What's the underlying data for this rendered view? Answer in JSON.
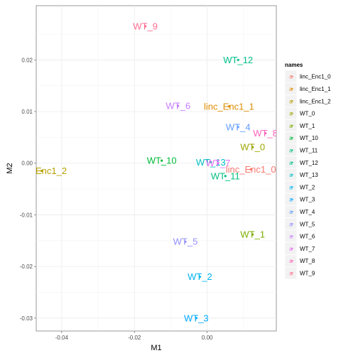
{
  "chart_data": {
    "type": "scatter",
    "xlabel": "M1",
    "ylabel": "M2",
    "xlim": [
      -0.047,
      0.019
    ],
    "ylim": [
      -0.0325,
      0.0305
    ],
    "x_ticks": [
      -0.04,
      -0.02,
      0.0
    ],
    "x_tick_labels": [
      "-0.04",
      "-0.02",
      "0.00"
    ],
    "y_ticks": [
      -0.03,
      -0.02,
      -0.01,
      0.0,
      0.01,
      0.02
    ],
    "y_tick_labels": [
      "-0.03",
      "-0.02",
      "-0.01",
      "0.00",
      "0.01",
      "0.02"
    ],
    "grid": true,
    "legend_title": "names",
    "legend_position": "right",
    "points": [
      {
        "label": "linc_Enc1_0",
        "x": 0.012,
        "y": -0.0012,
        "color": "#F8766D"
      },
      {
        "label": "linc_Enc1_1",
        "x": 0.006,
        "y": 0.011,
        "color": "#DE8C00"
      },
      {
        "label": "linc_Enc1_2",
        "x": -0.0455,
        "y": -0.0015,
        "color": "#B79F00"
      },
      {
        "label": "WT_0",
        "x": 0.0125,
        "y": 0.0031,
        "color": "#9BA600"
      },
      {
        "label": "WT_1",
        "x": 0.0125,
        "y": -0.0138,
        "color": "#7CAE00"
      },
      {
        "label": "WT_10",
        "x": -0.0125,
        "y": 0.0005,
        "color": "#00BA38"
      },
      {
        "label": "WT_11",
        "x": 0.005,
        "y": -0.0025,
        "color": "#00BF7D"
      },
      {
        "label": "WT_12",
        "x": 0.0085,
        "y": 0.02,
        "color": "#00C08B"
      },
      {
        "label": "WT_13",
        "x": 0.001,
        "y": 0.0002,
        "color": "#00BFC4"
      },
      {
        "label": "WT_2",
        "x": -0.002,
        "y": -0.022,
        "color": "#00B4F0"
      },
      {
        "label": "WT_3",
        "x": -0.003,
        "y": -0.03,
        "color": "#00A9FF"
      },
      {
        "label": "WT_4",
        "x": 0.0085,
        "y": 0.007,
        "color": "#619CFF"
      },
      {
        "label": "WT_5",
        "x": -0.006,
        "y": -0.0152,
        "color": "#9590FF"
      },
      {
        "label": "WT_6",
        "x": -0.008,
        "y": 0.0111,
        "color": "#C77CFF"
      },
      {
        "label": "WT_7",
        "x": 0.003,
        "y": 0.0,
        "color": "#E76BF3"
      },
      {
        "label": "WT_8",
        "x": 0.016,
        "y": 0.0058,
        "color": "#FF62BC"
      },
      {
        "label": "WT_9",
        "x": -0.017,
        "y": 0.0265,
        "color": "#FF6C91"
      }
    ]
  }
}
